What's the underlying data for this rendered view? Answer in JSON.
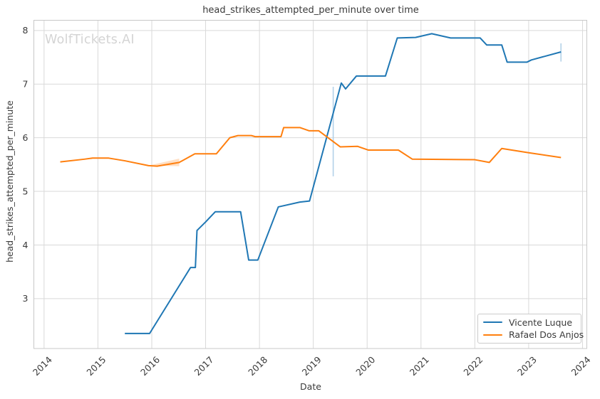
{
  "watermark": {
    "text": "WolfTickets.AI",
    "color": "#d4d4d4"
  },
  "chart_data": {
    "type": "line",
    "title": "head_strikes_attempted_per_minute over time",
    "xlabel": "Date",
    "ylabel": "head_strikes_attempted_per_minute",
    "grid": true,
    "legend_position": "lower right",
    "xlim": [
      2013.81,
      2024.08
    ],
    "ylim": [
      2.07,
      8.19
    ],
    "x_tick_values": [
      2014,
      2015,
      2016,
      2017,
      2018,
      2019,
      2020,
      2021,
      2022,
      2023,
      2024
    ],
    "x_tick_labels": [
      "2014",
      "2015",
      "2016",
      "2017",
      "2018",
      "2019",
      "2020",
      "2021",
      "2022",
      "2023",
      "2024"
    ],
    "y_tick_values": [
      3,
      4,
      5,
      6,
      7,
      8
    ],
    "y_tick_labels": [
      "3",
      "4",
      "5",
      "6",
      "7",
      "8"
    ],
    "colors": {
      "grid": "#d9d9d9",
      "spine": "#c8c8c8",
      "tick_text": "#3a3a3a"
    },
    "series": [
      {
        "name": "Vicente Luque",
        "color": "#1f77b4",
        "points": [
          [
            2015.5,
            2.35
          ],
          [
            2015.96,
            2.35
          ],
          [
            2016.72,
            3.58
          ],
          [
            2016.81,
            3.58
          ],
          [
            2016.84,
            4.27
          ],
          [
            2017.0,
            4.43
          ],
          [
            2017.18,
            4.62
          ],
          [
            2017.65,
            4.62
          ],
          [
            2017.8,
            3.72
          ],
          [
            2017.97,
            3.72
          ],
          [
            2018.35,
            4.71
          ],
          [
            2018.75,
            4.8
          ],
          [
            2018.93,
            4.82
          ],
          [
            2019.37,
            6.46
          ],
          [
            2019.52,
            7.02
          ],
          [
            2019.6,
            6.91
          ],
          [
            2019.8,
            7.15
          ],
          [
            2020.34,
            7.15
          ],
          [
            2020.56,
            7.86
          ],
          [
            2020.9,
            7.87
          ],
          [
            2021.2,
            7.94
          ],
          [
            2021.55,
            7.86
          ],
          [
            2022.1,
            7.86
          ],
          [
            2022.22,
            7.73
          ],
          [
            2022.5,
            7.73
          ],
          [
            2022.6,
            7.41
          ],
          [
            2022.97,
            7.41
          ],
          [
            2023.05,
            7.45
          ],
          [
            2023.6,
            7.6
          ]
        ],
        "error_bars": [
          {
            "x": 2019.37,
            "low": 5.28,
            "high": 6.95
          },
          {
            "x": 2023.6,
            "low": 7.42,
            "high": 7.76
          }
        ],
        "error_bar_color": "#b3d1e8"
      },
      {
        "name": "Rafael Dos Anjos",
        "color": "#ff7f0e",
        "points": [
          [
            2014.3,
            5.55
          ],
          [
            2014.75,
            5.6
          ],
          [
            2014.9,
            5.62
          ],
          [
            2015.2,
            5.62
          ],
          [
            2015.5,
            5.57
          ],
          [
            2015.94,
            5.48
          ],
          [
            2016.1,
            5.47
          ],
          [
            2016.51,
            5.54
          ],
          [
            2016.8,
            5.7
          ],
          [
            2017.2,
            5.7
          ],
          [
            2017.45,
            6.0
          ],
          [
            2017.6,
            6.04
          ],
          [
            2017.85,
            6.04
          ],
          [
            2017.92,
            6.02
          ],
          [
            2018.4,
            6.02
          ],
          [
            2018.45,
            6.19
          ],
          [
            2018.75,
            6.19
          ],
          [
            2018.92,
            6.13
          ],
          [
            2019.1,
            6.13
          ],
          [
            2019.5,
            5.83
          ],
          [
            2019.82,
            5.84
          ],
          [
            2020.02,
            5.77
          ],
          [
            2020.58,
            5.77
          ],
          [
            2020.84,
            5.6
          ],
          [
            2022.0,
            5.59
          ],
          [
            2022.27,
            5.54
          ],
          [
            2022.5,
            5.8
          ],
          [
            2023.0,
            5.72
          ],
          [
            2023.6,
            5.63
          ]
        ],
        "band": {
          "polygon": [
            [
              2015.94,
              5.48
            ],
            [
              2016.51,
              5.61
            ],
            [
              2016.51,
              5.47
            ]
          ],
          "color": "rgba(255,127,14,0.25)"
        }
      }
    ]
  },
  "legend": {
    "items": [
      {
        "label": "Vicente Luque",
        "color": "#1f77b4"
      },
      {
        "label": "Rafael Dos Anjos",
        "color": "#ff7f0e"
      }
    ]
  }
}
